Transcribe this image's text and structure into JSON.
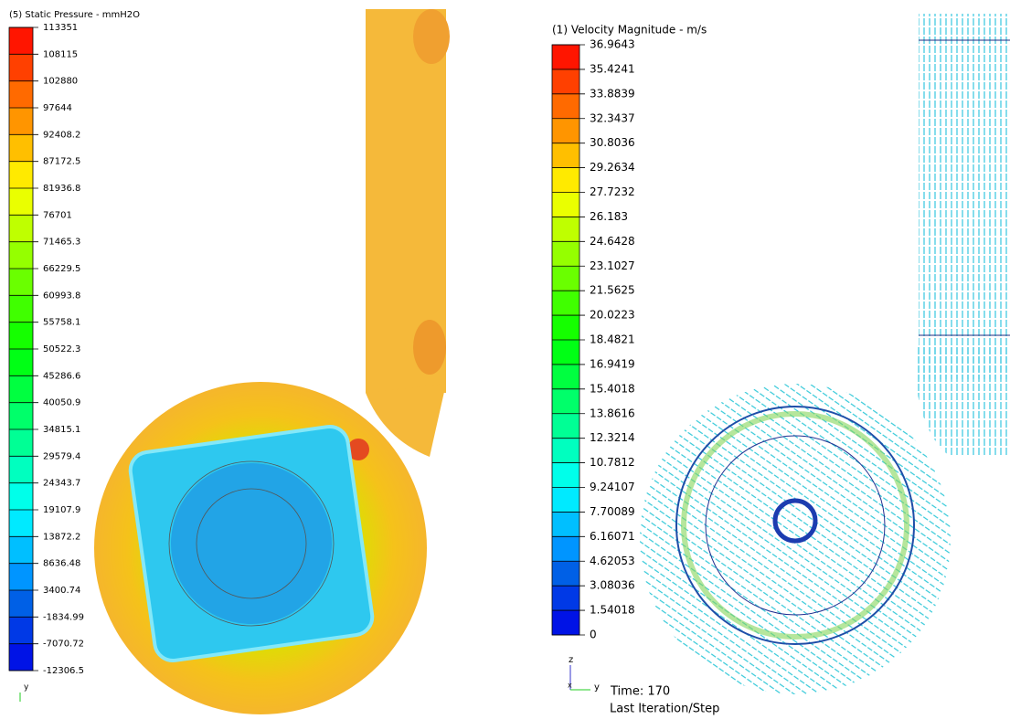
{
  "left_panel": {
    "legend": {
      "title": "(5) Static Pressure - mmH2O",
      "labels": [
        113351,
        108115,
        102880,
        97644,
        92408.2,
        87172.5,
        81936.8,
        76701,
        71465.3,
        66229.5,
        60993.8,
        55758.1,
        50522.3,
        45286.6,
        40050.9,
        34815.1,
        29579.4,
        24343.7,
        19107.9,
        13872.2,
        8636.48,
        3400.74,
        -1834.99,
        -7070.72,
        -12306.5
      ]
    },
    "axis": {
      "y": "y"
    }
  },
  "right_panel": {
    "legend": {
      "title": "(1) Velocity Magnitude - m/s",
      "labels": [
        36.9643,
        35.4241,
        33.8839,
        32.3437,
        30.8036,
        29.2634,
        27.7232,
        26.183,
        24.6428,
        23.1027,
        21.5625,
        20.0223,
        18.4821,
        16.9419,
        15.4018,
        13.8616,
        12.3214,
        10.7812,
        9.24107,
        7.70089,
        6.16071,
        4.62053,
        3.08036,
        1.54018,
        0
      ]
    },
    "axis": {
      "z": "z",
      "y": "y",
      "x": "x"
    },
    "time": "Time: 170",
    "step": "Last Iteration/Step"
  }
}
